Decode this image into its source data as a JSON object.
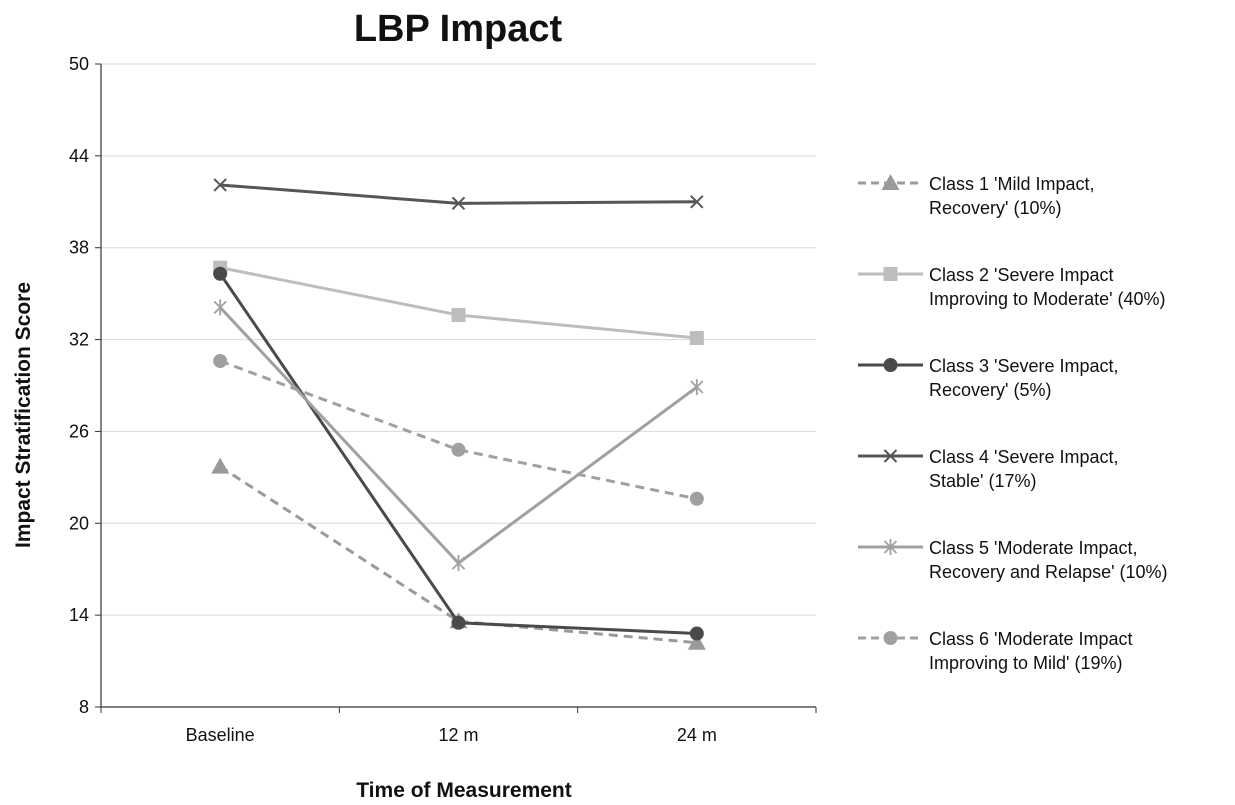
{
  "chart_data": {
    "type": "line",
    "title": "LBP Impact",
    "xlabel": "Time of Measurement",
    "ylabel": "Impact Stratification Score",
    "categories": [
      "Baseline",
      "12 m",
      "24 m"
    ],
    "ylim": [
      8,
      50
    ],
    "yticks": [
      8,
      14,
      20,
      26,
      32,
      38,
      44,
      50
    ],
    "grid": true,
    "legend_position": "right",
    "series": [
      {
        "name": "Class 1 'Mild Impact, Recovery' (10%)",
        "label_lines": [
          "Class 1 'Mild Impact,",
          "Recovery' (10%)"
        ],
        "values": [
          23.7,
          13.6,
          12.2
        ],
        "color": "#9a9a9a",
        "dashed": true,
        "marker": "triangle"
      },
      {
        "name": "Class 2 'Severe Impact Improving to Moderate' (40%)",
        "label_lines": [
          "Class 2 'Severe Impact",
          "Improving to Moderate' (40%)"
        ],
        "values": [
          36.7,
          33.6,
          32.1
        ],
        "color": "#bdbdbd",
        "dashed": false,
        "marker": "square"
      },
      {
        "name": "Class 3 'Severe Impact, Recovery' (5%)",
        "label_lines": [
          "Class 3 'Severe Impact,",
          "Recovery' (5%)"
        ],
        "values": [
          36.3,
          13.5,
          12.8
        ],
        "color": "#4a4a4a",
        "dashed": false,
        "marker": "circle"
      },
      {
        "name": "Class 4 'Severe Impact, Stable' (17%)",
        "label_lines": [
          "Class 4 'Severe Impact,",
          "Stable' (17%)"
        ],
        "values": [
          42.1,
          40.9,
          41.0
        ],
        "color": "#555555",
        "dashed": false,
        "marker": "x"
      },
      {
        "name": "Class 5 'Moderate Impact, Recovery and Relapse' (10%)",
        "label_lines": [
          "Class 5 'Moderate Impact,",
          "Recovery and Relapse' (10%)"
        ],
        "values": [
          34.1,
          17.4,
          28.9
        ],
        "color": "#a0a0a0",
        "dashed": false,
        "marker": "asterisk"
      },
      {
        "name": "Class 6 'Moderate Impact Improving to Mild' (19%)",
        "label_lines": [
          "Class 6 'Moderate Impact",
          "Improving to Mild' (19%)"
        ],
        "values": [
          30.6,
          24.8,
          21.6
        ],
        "color": "#a0a0a0",
        "dashed": true,
        "marker": "circle"
      }
    ]
  }
}
